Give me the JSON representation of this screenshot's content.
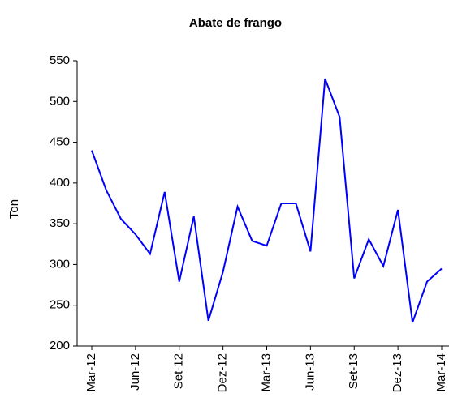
{
  "chart_data": {
    "type": "line",
    "title": "Abate de frango",
    "y_label": "Ton",
    "categories": [
      "Mar-12",
      null,
      null,
      "Jun-12",
      null,
      null,
      "Set-12",
      null,
      null,
      "Dez-12",
      null,
      null,
      "Mar-13",
      null,
      null,
      "Jun-13",
      null,
      null,
      "Set-13",
      null,
      null,
      "Dez-13",
      null,
      null,
      "Mar-14"
    ],
    "series": [
      {
        "name": "Abate de frango",
        "color": "#0000ff",
        "values": [
          440,
          391,
          356,
          337,
          313,
          389,
          279,
          359,
          231,
          291,
          371,
          329,
          323,
          375,
          375,
          316,
          528,
          481,
          283,
          331,
          298,
          367,
          229,
          279,
          295
        ]
      }
    ],
    "ylim": [
      200,
      550
    ],
    "yticks": [
      200,
      250,
      300,
      350,
      400,
      450,
      500,
      550
    ],
    "grid": false
  }
}
